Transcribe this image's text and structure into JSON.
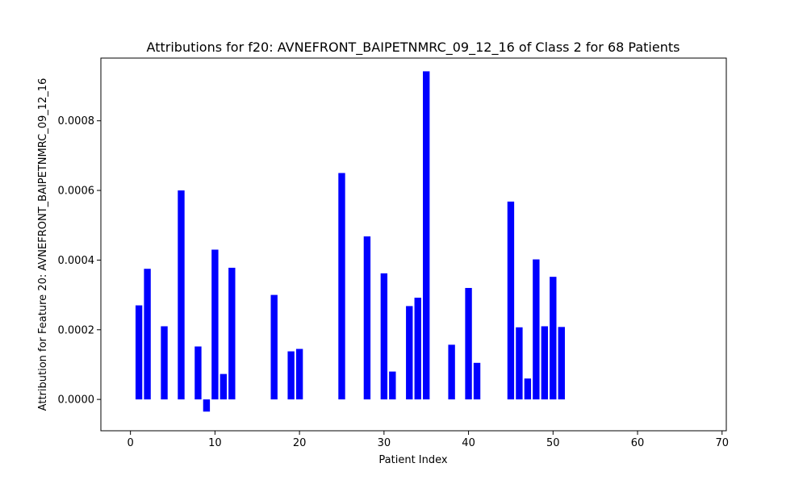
{
  "chart_data": {
    "type": "bar",
    "title": "Attributions for f20: AVNEFRONT_BAIPETNMRC_09_12_16 of Class 2 for 68 Patients",
    "xlabel": "Patient Index",
    "ylabel": "Attribution for Feature 20: AVNEFRONT_BAIPETNMRC_09_12_16",
    "xlim": [
      -3.5,
      70.5
    ],
    "ylim": [
      -9e-05,
      0.00098
    ],
    "xticks": [
      0,
      10,
      20,
      30,
      40,
      50,
      60,
      70
    ],
    "yticks": [
      0.0,
      0.0002,
      0.0004,
      0.0006,
      0.0008
    ],
    "ytick_labels": [
      "0.0000",
      "0.0002",
      "0.0004",
      "0.0006",
      "0.0008"
    ],
    "bar_color": "#0000ff",
    "grid": false,
    "legend": "none",
    "x": [
      1,
      2,
      4,
      6,
      8,
      9,
      10,
      11,
      12,
      17,
      19,
      20,
      25,
      28,
      30,
      31,
      33,
      34,
      35,
      38,
      40,
      41,
      45,
      46,
      47,
      48,
      49,
      50,
      51
    ],
    "values": [
      0.00027,
      0.000375,
      0.00021,
      0.0006,
      0.000152,
      -3.5e-05,
      0.00043,
      7.3e-05,
      0.000378,
      0.0003,
      0.000138,
      0.000145,
      0.00065,
      0.000468,
      0.000362,
      8e-05,
      0.000268,
      0.000292,
      0.000942,
      0.000157,
      0.00032,
      0.000105,
      0.000568,
      0.000207,
      6e-05,
      0.000402,
      0.00021,
      0.000352,
      0.000208
    ]
  }
}
